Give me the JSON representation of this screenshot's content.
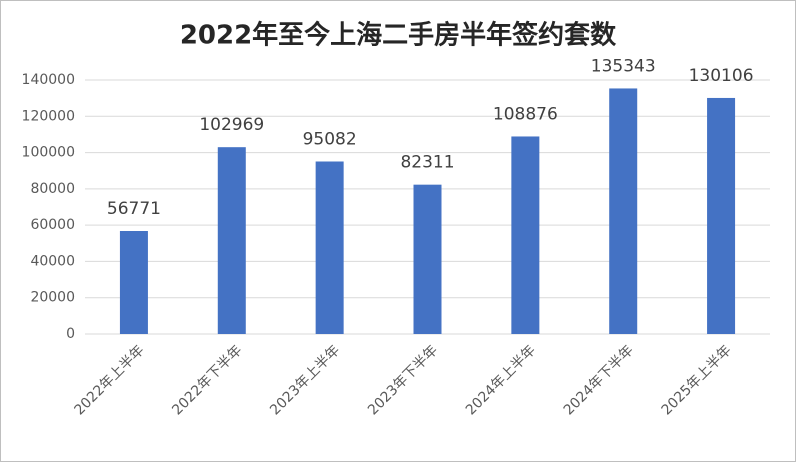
{
  "chart_data": {
    "type": "bar",
    "title": "2022年至今上海二手房半年签约套数",
    "categories": [
      "2022年上半年",
      "2022年下半年",
      "2023年上半年",
      "2023年下半年",
      "2024年上半年",
      "2024年下半年",
      "2025年上半年"
    ],
    "values": [
      56771,
      102969,
      95082,
      82311,
      108876,
      135343,
      130106
    ],
    "color": "#4472c4",
    "ylim": [
      0,
      140000
    ],
    "yticks": [
      0,
      20000,
      40000,
      60000,
      80000,
      100000,
      120000,
      140000
    ],
    "grid": true
  }
}
